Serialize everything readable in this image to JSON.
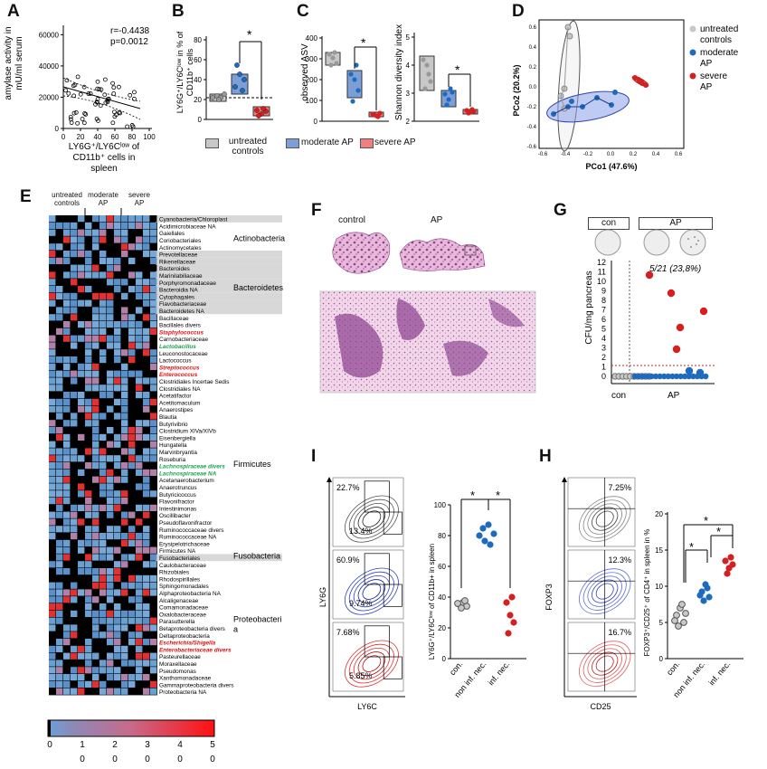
{
  "panels": {
    "A": "A",
    "B": "B",
    "C": "C",
    "D": "D",
    "E": "E",
    "F": "F",
    "G": "G",
    "H": "H",
    "I": "I"
  },
  "colors": {
    "untreated": "#c8c8c8",
    "moderate": "#7b9fd6",
    "severe": "#f08080",
    "blue_dot": "#1e6bbd",
    "red_dot": "#d42020",
    "heat_low": "#0a0a0a",
    "heat_mid": "#6a9fd0"
  },
  "panelA": {
    "stats_r": "r=-0.4438",
    "stats_p": "p=0.0012",
    "ylabel_1": "amylase activity in",
    "ylabel_2": "mU/ml serum",
    "xlabel_1": "LY6G⁺/LY6Cˡᵒʷ of",
    "xlabel_2": "CD11b⁺ cells in",
    "xlabel_3": "spleen",
    "yticks": [
      "0",
      "20000",
      "40000",
      "60000"
    ],
    "xticks": [
      "0",
      "20",
      "40",
      "60",
      "80",
      "100"
    ]
  },
  "panelB": {
    "ylabel_1": "LY6G⁺/LY6Cˡᵒʷ in % of",
    "ylabel_2": "CD11b⁺ cells",
    "yticks": [
      "0",
      "20",
      "40",
      "60",
      "80"
    ],
    "star": "*"
  },
  "panelC": {
    "ylabel_left": "observed ASV",
    "ylabel_right": "Shannon diversity index",
    "yticks_left": [
      "0",
      "100",
      "200",
      "300",
      "400"
    ],
    "yticks_right": [
      "2",
      "3",
      "4",
      "5"
    ],
    "star": "*"
  },
  "legendBC": {
    "untreated": "untreated",
    "untreated2": "controls",
    "moderate": "moderate AP",
    "severe": "severe AP"
  },
  "panelD": {
    "ylabel": "PCo2 (20.2%)",
    "xlabel": "PCo1 (47.6%)",
    "legend": [
      {
        "label": "untreated",
        "label2": "controls",
        "color": "#c8c8c8"
      },
      {
        "label": "moderate",
        "label2": "AP",
        "color": "#1e6bbd"
      },
      {
        "label": "severe",
        "label2": "AP",
        "color": "#d42020"
      }
    ],
    "xticks": [
      "-0.6",
      "-0.4",
      "-0.2",
      "0.0",
      "0.2",
      "0.4",
      "0.6"
    ],
    "yticks": [
      "0.6",
      "0.4",
      "0.2",
      "0.0",
      "-0.2",
      "-0.4",
      "-0.6"
    ]
  },
  "panelE": {
    "col_headers": [
      {
        "l1": "untreated",
        "l2": "controls"
      },
      {
        "l1": "moderate",
        "l2": "AP"
      },
      {
        "l1": "severe",
        "l2": "AP"
      }
    ],
    "rows": [
      {
        "name": "Cyanobacteria/Chloroplast",
        "style": "plain"
      },
      {
        "name": "Acidimicrobiaceae NA",
        "style": "plain"
      },
      {
        "name": "Gaiellales",
        "style": "plain"
      },
      {
        "name": "Coriobacteriales",
        "style": "plain"
      },
      {
        "name": "Actinomycetales",
        "style": "plain"
      },
      {
        "name": "Prevotellaceae",
        "style": "plain"
      },
      {
        "name": "Rikenellaceae",
        "style": "plain"
      },
      {
        "name": "Bacteroides",
        "style": "plain"
      },
      {
        "name": "Marinilabiliaceae",
        "style": "plain"
      },
      {
        "name": "Porphyromonadaceae",
        "style": "plain"
      },
      {
        "name": "Bacteroidia NA",
        "style": "plain"
      },
      {
        "name": "Cytophagales",
        "style": "plain"
      },
      {
        "name": "Flavobacteriaceae",
        "style": "plain"
      },
      {
        "name": "Bacteroidetes NA",
        "style": "plain"
      },
      {
        "name": "Bacillaceae",
        "style": "plain"
      },
      {
        "name": "Bacillales divers",
        "style": "plain"
      },
      {
        "name": "Staphylococcus",
        "style": "red"
      },
      {
        "name": "Carnobacteriaceae",
        "style": "plain"
      },
      {
        "name": "Lactobacillus",
        "style": "green"
      },
      {
        "name": "Leuconostocaceae",
        "style": "plain"
      },
      {
        "name": "Lactococcus",
        "style": "plain"
      },
      {
        "name": "Streptococcus",
        "style": "red"
      },
      {
        "name": "Enterococcus",
        "style": "red"
      },
      {
        "name": "Clostridiales Incertae Sedis",
        "style": "plain"
      },
      {
        "name": "Clostridiales NA",
        "style": "plain"
      },
      {
        "name": "Acetatifactor",
        "style": "plain"
      },
      {
        "name": "Acetitomaculum",
        "style": "plain"
      },
      {
        "name": "Anaerostipes",
        "style": "plain"
      },
      {
        "name": "Blautia",
        "style": "plain"
      },
      {
        "name": "Butyrivibrio",
        "style": "plain"
      },
      {
        "name": "Clostridium XIVa/XIVb",
        "style": "plain"
      },
      {
        "name": "Eisenbergiella",
        "style": "plain"
      },
      {
        "name": "Hungatella",
        "style": "plain"
      },
      {
        "name": "Marvinbryantia",
        "style": "plain"
      },
      {
        "name": "Roseburia",
        "style": "plain"
      },
      {
        "name": "Lachnospiraceae divers",
        "style": "green"
      },
      {
        "name": "Lachnospiraceae NA",
        "style": "green"
      },
      {
        "name": "Acetanaerobacterium",
        "style": "plain"
      },
      {
        "name": "Anaerotruncus",
        "style": "plain"
      },
      {
        "name": "Butyricicoccus",
        "style": "plain"
      },
      {
        "name": "Flavonifractor",
        "style": "plain"
      },
      {
        "name": "Intestinimonas",
        "style": "plain"
      },
      {
        "name": "Oscillibacter",
        "style": "plain"
      },
      {
        "name": "Pseudoflavonifractor",
        "style": "plain"
      },
      {
        "name": "Ruminococcaceae divers",
        "style": "plain"
      },
      {
        "name": "Ruminococcaceae NA",
        "style": "plain"
      },
      {
        "name": "Erysipelotrichaceae",
        "style": "plain"
      },
      {
        "name": "Firmicutes NA",
        "style": "plain"
      },
      {
        "name": "Fusobacteriales",
        "style": "plain"
      },
      {
        "name": "Caulobacteraceae",
        "style": "plain"
      },
      {
        "name": "Rhizobiales",
        "style": "plain"
      },
      {
        "name": "Rhodospirillales",
        "style": "plain"
      },
      {
        "name": "Sphingomonadales",
        "style": "plain"
      },
      {
        "name": "Alphaproteobacteria NA",
        "style": "plain"
      },
      {
        "name": "Alcaligenaceae",
        "style": "plain"
      },
      {
        "name": "Comamonadaceae",
        "style": "plain"
      },
      {
        "name": "Oxalobacteraceae",
        "style": "plain"
      },
      {
        "name": "Parasutterella",
        "style": "plain"
      },
      {
        "name": "Betaproteobacteria divers",
        "style": "plain"
      },
      {
        "name": "Deltaproteobacteria",
        "style": "plain"
      },
      {
        "name": "Escherichia/Shigella",
        "style": "red"
      },
      {
        "name": "Enterobacteriaceae divers",
        "style": "red"
      },
      {
        "name": "Pasteurellaceae",
        "style": "plain"
      },
      {
        "name": "Moraxellaceae",
        "style": "plain"
      },
      {
        "name": "Pseudomonas",
        "style": "plain"
      },
      {
        "name": "Xanthomonadaceae",
        "style": "plain"
      },
      {
        "name": "Gammaproteobacteria divers",
        "style": "plain"
      },
      {
        "name": "Proteobacteria NA",
        "style": "plain"
      }
    ],
    "groups": [
      {
        "label": "Actinobacteria",
        "lines": [
          "Actinobacteria"
        ]
      },
      {
        "label": "Bacteroidetes",
        "lines": [
          "Bacteroidetes"
        ]
      },
      {
        "label": "Firmicutes",
        "lines": [
          "Firmicutes"
        ]
      },
      {
        "label": "Fusobacteria",
        "lines": [
          "Fusobacteria"
        ]
      },
      {
        "label": "Proteobacteria",
        "lines": [
          "Proteobacteri",
          "a"
        ]
      }
    ],
    "colorbar_top": [
      "0",
      "1",
      "2",
      "3",
      "4",
      "5"
    ],
    "colorbar_bottom": [
      "0",
      "0",
      "0",
      "0",
      "0"
    ]
  },
  "panelF": {
    "control": "control",
    "ap": "AP"
  },
  "panelG": {
    "header_con": "con",
    "header_ap": "AP",
    "annotation": "5/21 (23,8%)",
    "ylabel": "CFU/mg pancreas",
    "yticks": [
      "0",
      "1",
      "2",
      "3",
      "4",
      "5",
      "6",
      "7",
      "8",
      "9",
      "10",
      "11",
      "12"
    ],
    "xlabel_con": "con",
    "xlabel_ap": "AP"
  },
  "panelI": {
    "flow_pcts": [
      {
        "top": "22.7%",
        "bottom": "13.4%"
      },
      {
        "top": "60.9%",
        "bottom": "9.74%"
      },
      {
        "top": "7.68%",
        "bottom": "5.85%"
      }
    ],
    "ylabel": "LY6G",
    "xlabel": "LY6C",
    "dot_ylabel": "LY6G⁺/LY6Cˡᵒʷ of CD11b+ in spleen",
    "yticks": [
      "0",
      "20",
      "40",
      "60",
      "80",
      "100"
    ],
    "xcats": [
      "con.",
      "non inf. nec.",
      "inf. nec."
    ],
    "star": "*"
  },
  "panelH": {
    "flow_pcts": [
      "7.25%",
      "12.3%",
      "16.7%"
    ],
    "ylabel": "FOXP3",
    "xlabel": "CD25",
    "dot_ylabel": "FOXP3⁺/CD25⁺ of CD4⁺ in spleen in %",
    "yticks": [
      "0",
      "5",
      "10",
      "15",
      "20"
    ],
    "xcats": [
      "con.",
      "non inf. nec.",
      "inf. nec."
    ],
    "star": "*"
  }
}
